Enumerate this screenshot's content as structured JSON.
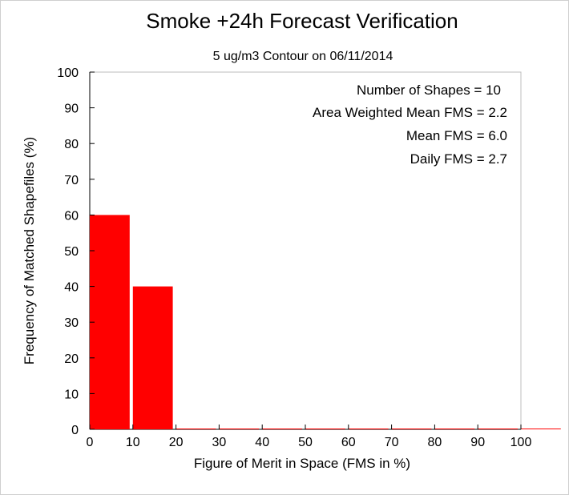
{
  "chart_data": {
    "type": "bar",
    "title": "Smoke +24h Forecast Verification",
    "subtitle": "5 ug/m3 Contour on 06/11/2014",
    "xlabel": "Figure of Merit in Space (FMS in %)",
    "ylabel": "Frequency of Matched Shapefiles (%)",
    "xlim": [
      0,
      100
    ],
    "ylim": [
      0,
      100
    ],
    "xticks": [
      0,
      10,
      20,
      30,
      40,
      50,
      60,
      70,
      80,
      90,
      100
    ],
    "yticks": [
      0,
      10,
      20,
      30,
      40,
      50,
      60,
      70,
      80,
      90,
      100
    ],
    "bins": [
      {
        "x0": 0,
        "x1": 10,
        "value": 60
      },
      {
        "x0": 10,
        "x1": 20,
        "value": 40
      },
      {
        "x0": 20,
        "x1": 30,
        "value": 0
      },
      {
        "x0": 30,
        "x1": 40,
        "value": 0
      },
      {
        "x0": 40,
        "x1": 50,
        "value": 0
      },
      {
        "x0": 50,
        "x1": 60,
        "value": 0
      },
      {
        "x0": 60,
        "x1": 70,
        "value": 0
      },
      {
        "x0": 70,
        "x1": 80,
        "value": 0
      },
      {
        "x0": 80,
        "x1": 90,
        "value": 0
      },
      {
        "x0": 90,
        "x1": 100,
        "value": 0
      },
      {
        "x0": 100,
        "x1": 110,
        "value": 0
      }
    ],
    "bar_color": "#ff0000",
    "grid": false,
    "annotations": [
      "Number of Shapes = 10",
      "Area Weighted Mean FMS = 2.2",
      "Mean FMS = 6.0",
      "Daily FMS = 2.7"
    ],
    "annotation_placement": "top-right"
  }
}
